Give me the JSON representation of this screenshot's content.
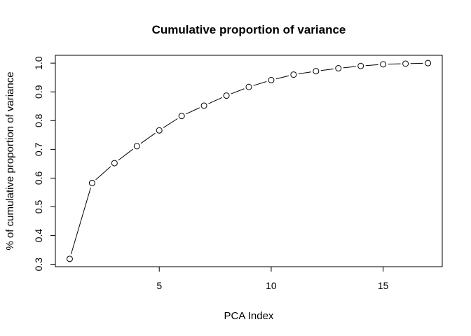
{
  "chart_data": {
    "type": "line",
    "title": "Cumulative proportion of variance",
    "xlabel": "PCA Index",
    "ylabel": "% of cumulative proportion of variance",
    "x": [
      1,
      2,
      3,
      4,
      5,
      6,
      7,
      8,
      9,
      10,
      11,
      12,
      13,
      14,
      15,
      16,
      17
    ],
    "y": [
      0.319,
      0.583,
      0.652,
      0.711,
      0.766,
      0.816,
      0.852,
      0.887,
      0.917,
      0.941,
      0.96,
      0.972,
      0.982,
      0.99,
      0.996,
      0.998,
      1.0
    ],
    "xlim": [
      0.36,
      17.64
    ],
    "ylim": [
      0.2918,
      1.0272
    ],
    "xticks": [
      5,
      10,
      15
    ],
    "yticks": [
      0.3,
      0.4,
      0.5,
      0.6,
      0.7,
      0.8,
      0.9,
      1.0
    ],
    "xtick_labels": [
      "5",
      "10",
      "15"
    ],
    "ytick_labels": [
      "0.3",
      "0.4",
      "0.5",
      "0.6",
      "0.7",
      "0.8",
      "0.9",
      "1.0"
    ],
    "marker": "open-circle",
    "line_style": "solid with gaps at points",
    "grid": false,
    "legend": "none",
    "colors": {
      "line": "#000000",
      "marker_fill": "#ffffff",
      "background": "#ffffff"
    }
  }
}
